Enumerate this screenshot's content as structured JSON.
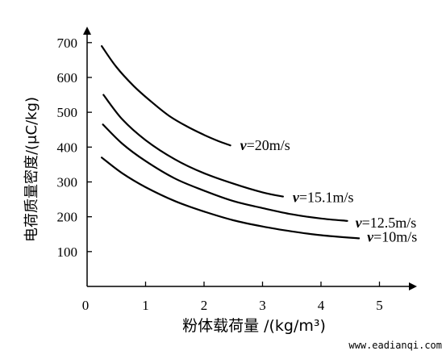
{
  "chart_data": {
    "type": "line",
    "title": "",
    "xlabel": "粉体载荷量 /(kg/m³)",
    "ylabel": "电荷质量密度/(μC/kg)",
    "xlim": [
      0,
      5.6
    ],
    "ylim": [
      0,
      760
    ],
    "x_ticks": [
      "0",
      "1",
      "2",
      "3",
      "4",
      "5"
    ],
    "y_ticks": [
      "100",
      "200",
      "300",
      "400",
      "500",
      "600",
      "700"
    ],
    "grid": false,
    "series": [
      {
        "name": "v=20m/s",
        "speed_value": "=20m/s",
        "x": [
          0.25,
          0.5,
          0.8,
          1.1,
          1.4,
          1.7,
          2.0,
          2.25,
          2.45
        ],
        "values": [
          690,
          630,
          575,
          530,
          490,
          460,
          435,
          417,
          405
        ]
      },
      {
        "name": "v=15.1m/s",
        "speed_value": "=15.1m/s",
        "x": [
          0.28,
          0.6,
          1.0,
          1.5,
          2.0,
          2.5,
          3.0,
          3.35
        ],
        "values": [
          550,
          480,
          420,
          365,
          325,
          295,
          270,
          258
        ]
      },
      {
        "name": "v=12.5m/s",
        "speed_value": "=12.5m/s",
        "x": [
          0.27,
          0.6,
          1.0,
          1.5,
          2.0,
          2.5,
          3.0,
          3.5,
          4.0,
          4.45
        ],
        "values": [
          465,
          410,
          360,
          310,
          275,
          245,
          225,
          207,
          195,
          188
        ]
      },
      {
        "name": "v=10m/s",
        "speed_value": "=10m/s",
        "x": [
          0.25,
          0.6,
          1.0,
          1.5,
          2.0,
          2.5,
          3.0,
          3.5,
          4.0,
          4.65
        ],
        "values": [
          370,
          325,
          285,
          245,
          215,
          190,
          172,
          158,
          147,
          138
        ]
      }
    ]
  },
  "series_label_prefix": "v",
  "watermark": "www.eadianqi.com"
}
